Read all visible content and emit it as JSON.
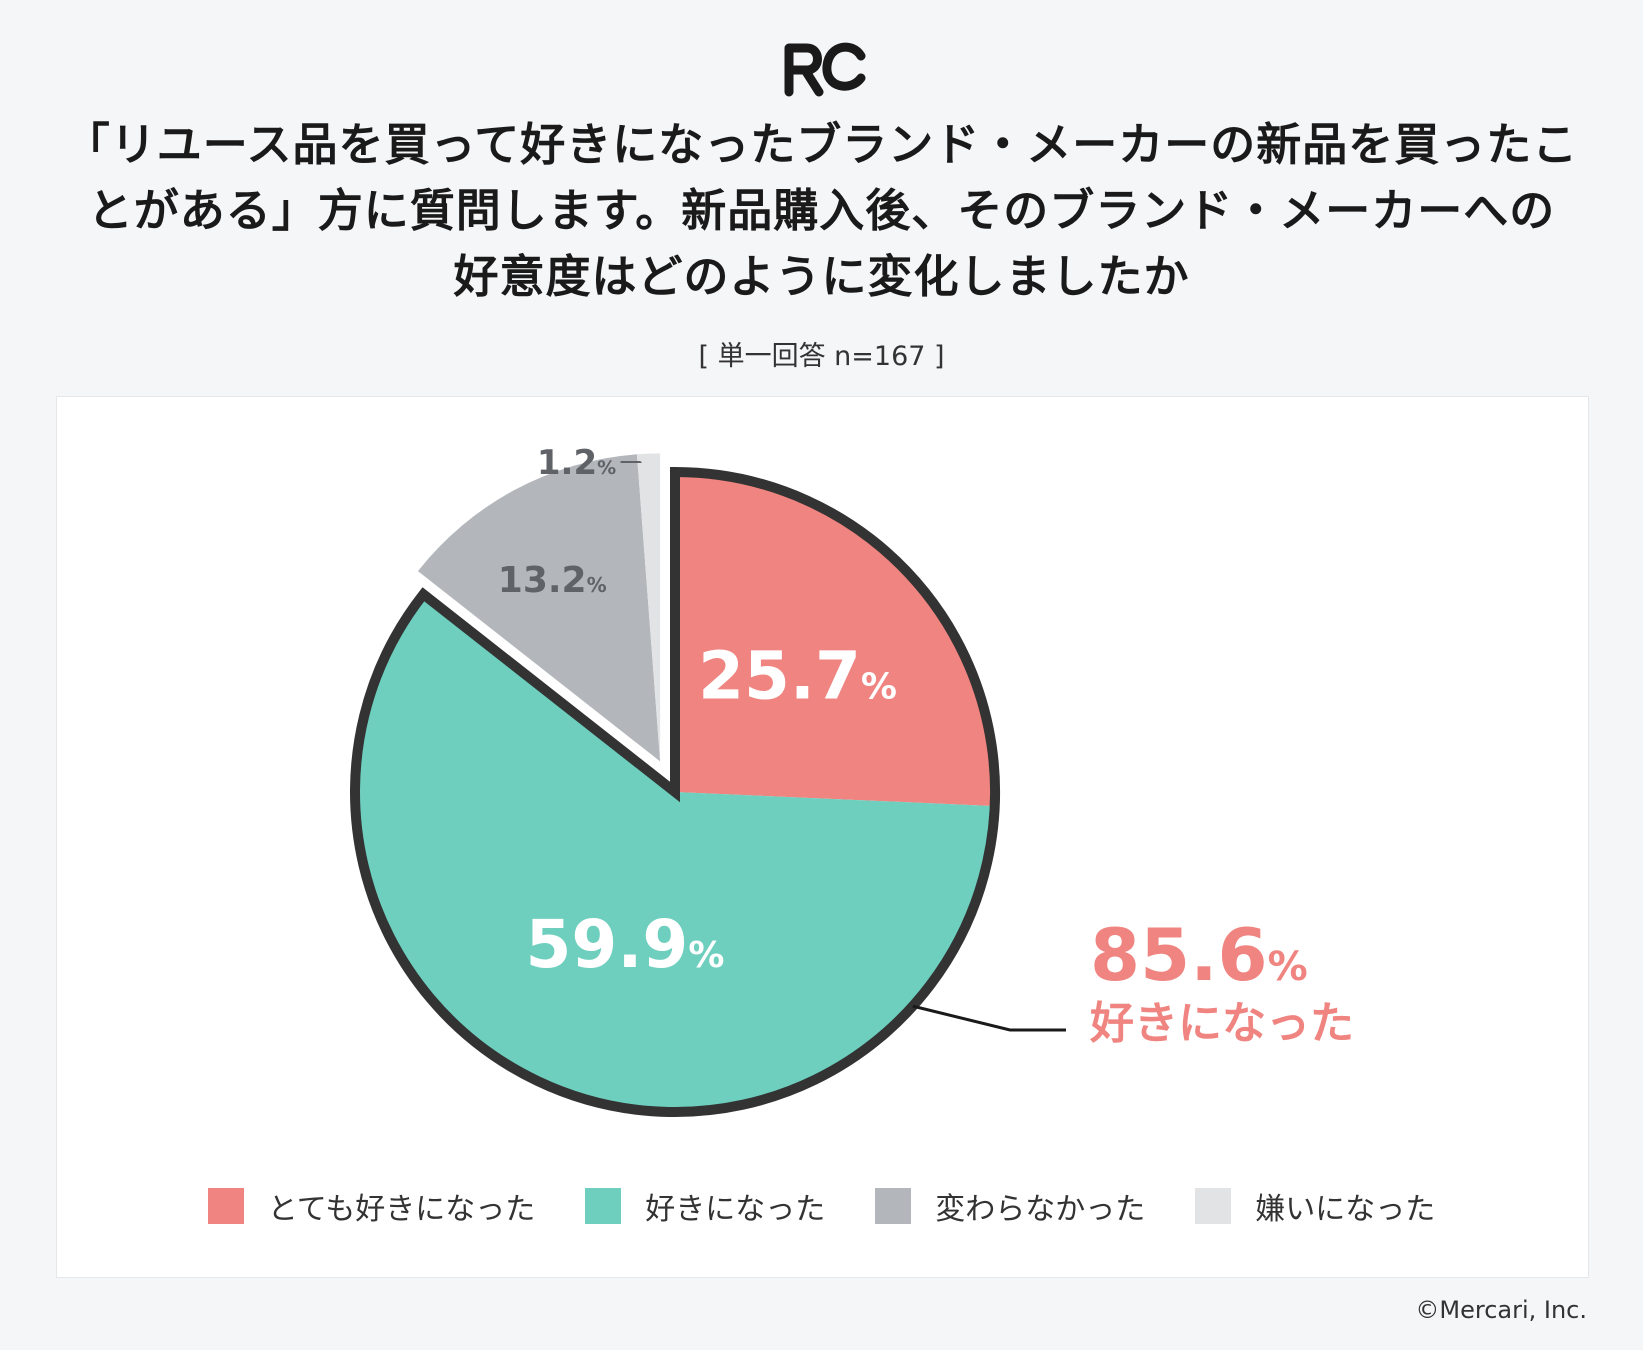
{
  "logo": {
    "alt": "RC"
  },
  "title_lines": [
    "「リユース品を買って好きになったブランド・メーカーの新品を買ったこ",
    "とがある」方に質問します。新品購入後、そのブランド・メーカーへの",
    "好意度はどのように変化しましたか"
  ],
  "sample_note": "[ 単一回答 n=167 ]",
  "chart_data": {
    "type": "pie",
    "labels": [
      "とても好きになった",
      "好きになった",
      "変わらなかった",
      "嫌いになった"
    ],
    "values": [
      25.7,
      59.9,
      13.2,
      1.2
    ],
    "value_labels": [
      "25.7",
      "59.9",
      "13.2",
      "1.2"
    ],
    "unit": "%",
    "colors": [
      "#ef8480",
      "#6ecfbf",
      "#b3b7bb",
      "#e1e3e4"
    ],
    "outline_color": "#333333",
    "start": "12 o'clock, clockwise",
    "exploded": [
      "変わらなかった",
      "嫌いになった"
    ],
    "callout": {
      "value": "85.6",
      "unit": "%",
      "label": "好きになった",
      "color": "#ef8480"
    }
  },
  "copyright": "©Mercari, Inc."
}
